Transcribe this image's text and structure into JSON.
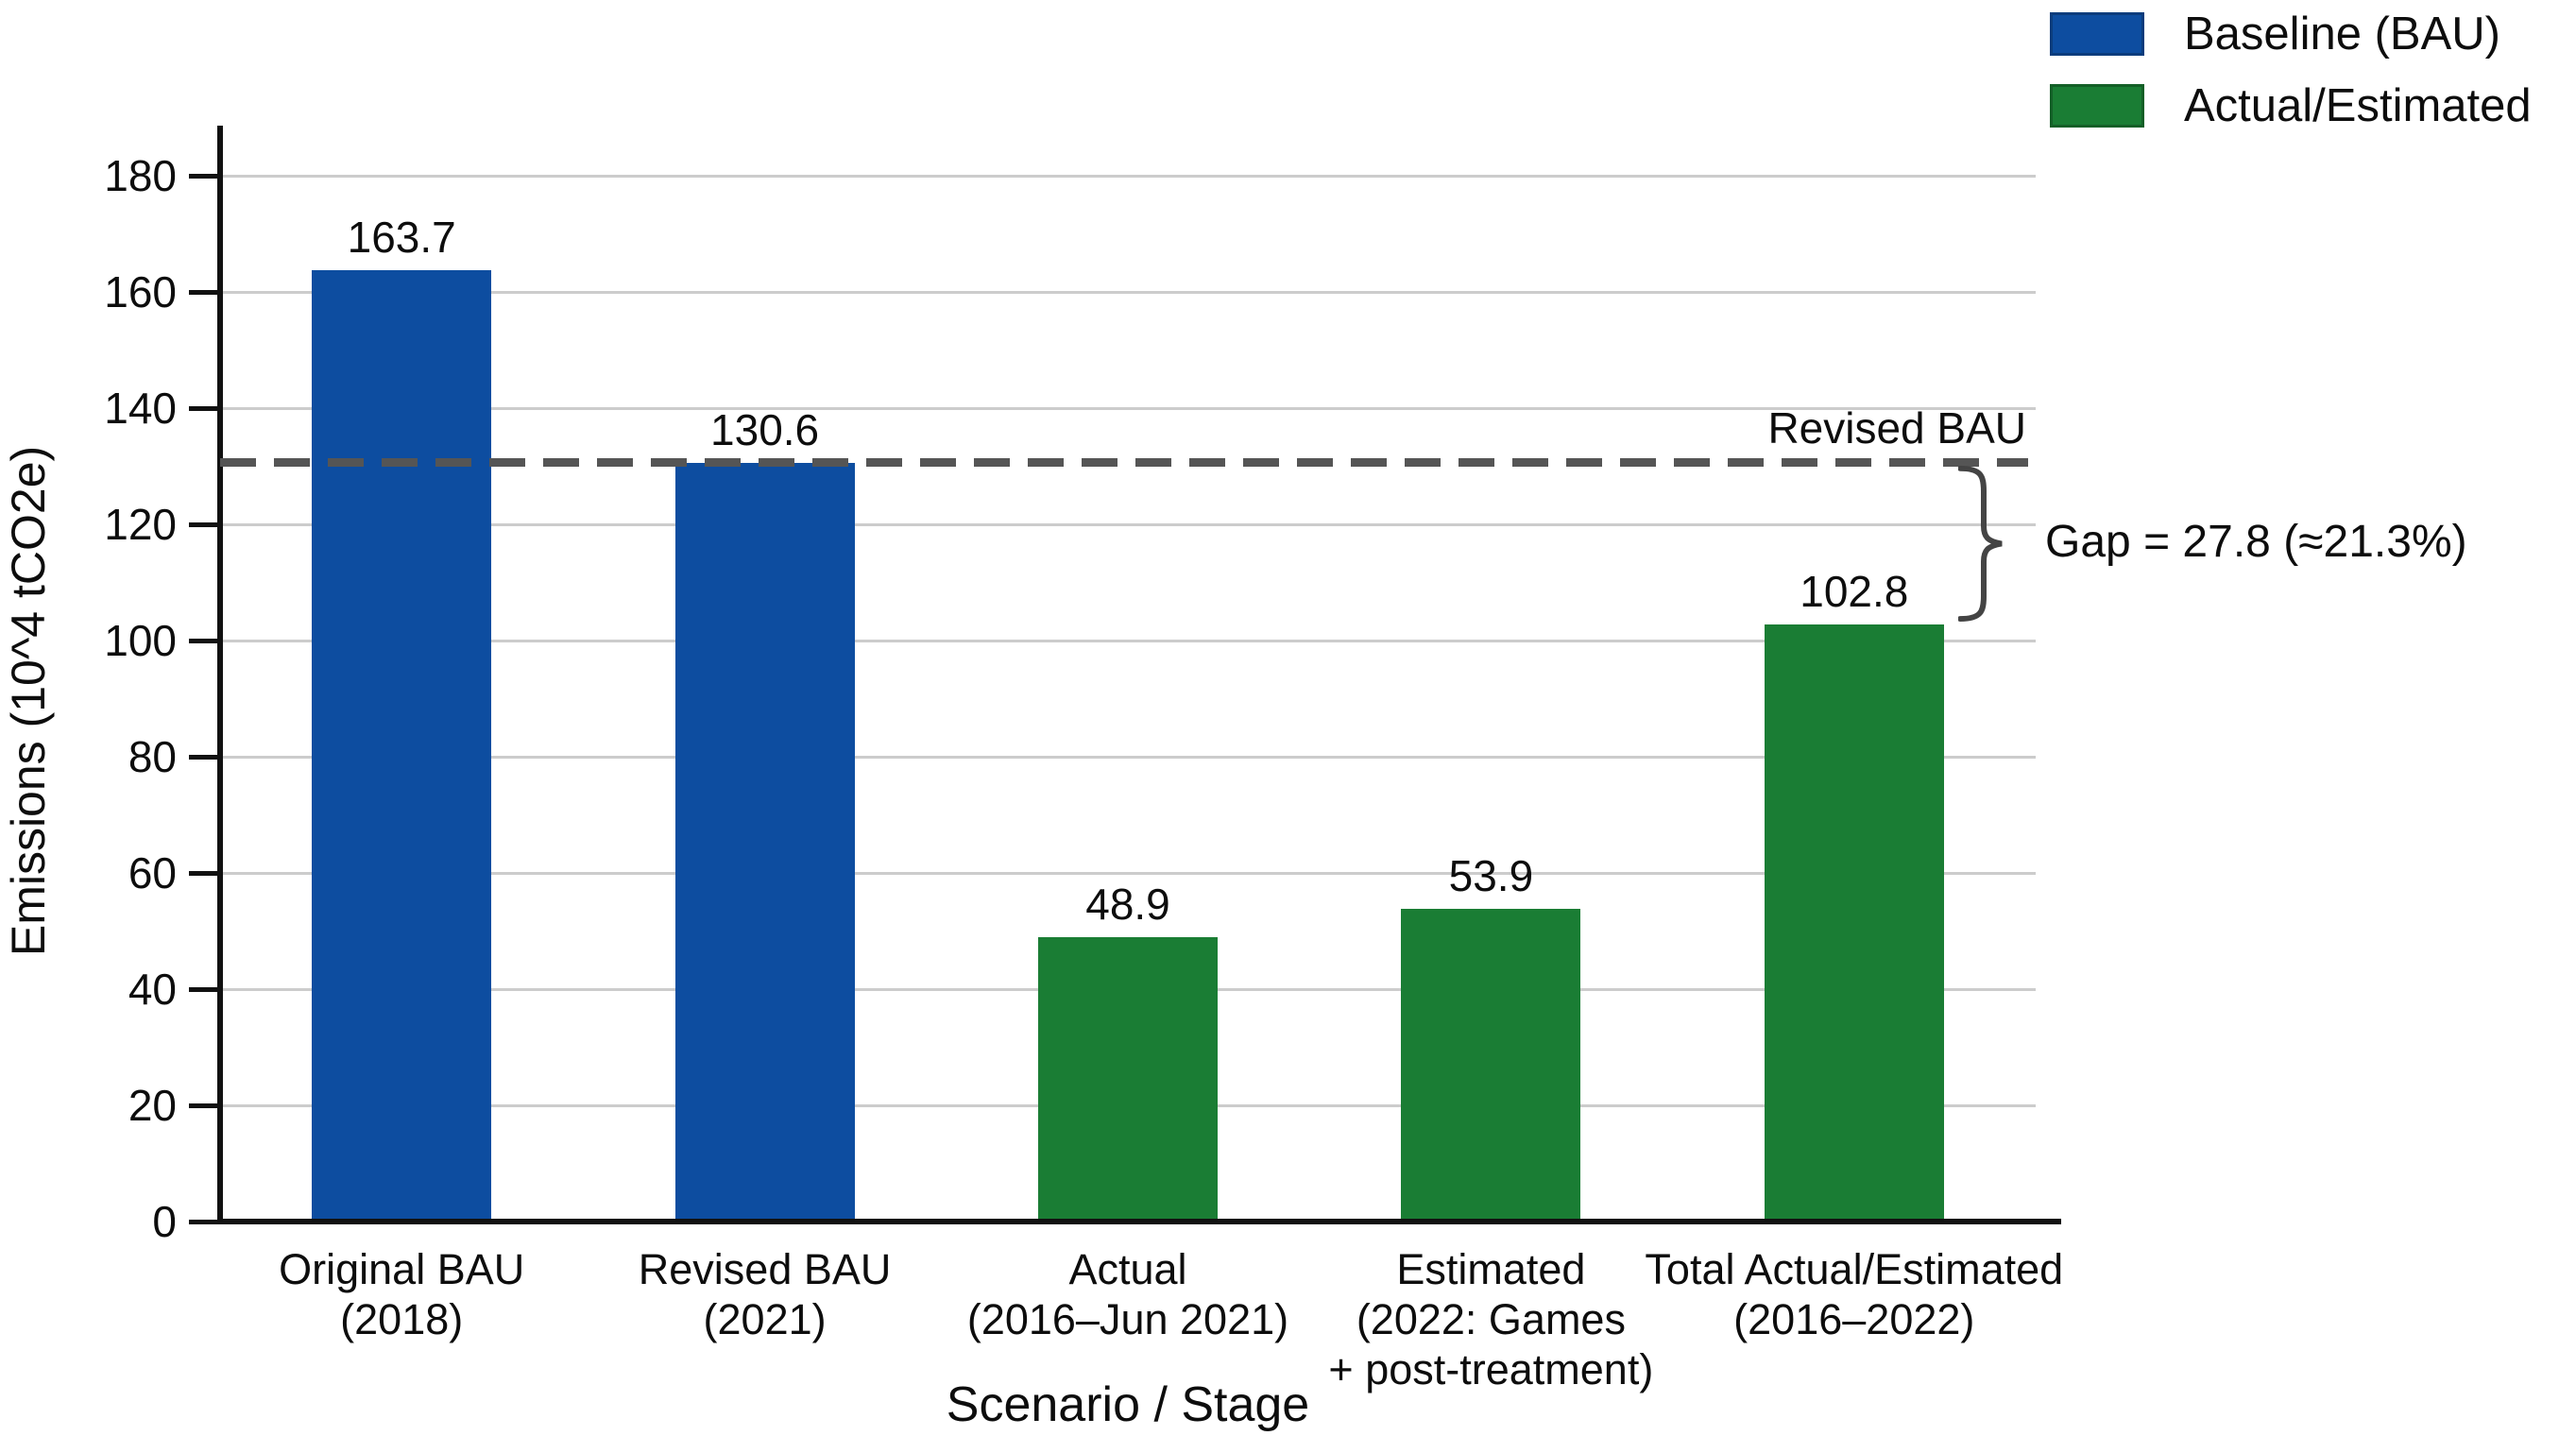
{
  "chart_data": {
    "type": "bar",
    "title": "",
    "xlabel": "Scenario / Stage",
    "ylabel": "Emissions (10^4 tCO2e)",
    "ylim": [
      0,
      180
    ],
    "yticks": [
      0,
      20,
      40,
      60,
      80,
      100,
      120,
      140,
      160,
      180
    ],
    "grid": "horizontal",
    "legend_position": "top-right",
    "categories": [
      [
        "Original BAU",
        "(2018)"
      ],
      [
        "Revised BAU",
        "(2021)"
      ],
      [
        "Actual",
        "(2016–Jun 2021)"
      ],
      [
        "Estimated",
        "(2022: Games",
        "+ post-treatment)"
      ],
      [
        "Total Actual/Estimated",
        "(2016–2022)"
      ]
    ],
    "values": [
      163.7,
      130.6,
      48.9,
      53.9,
      102.8
    ],
    "value_labels": [
      "163.7",
      "130.6",
      "48.9",
      "53.9",
      "102.8"
    ],
    "bar_series": [
      "baseline",
      "baseline",
      "actual",
      "actual",
      "actual"
    ],
    "colors": {
      "baseline": "#0d4da0",
      "actual": "#1a7d34",
      "baseline_border": "#0a3c7c",
      "actual_border": "#135f27",
      "gridline": "#cccccc",
      "axis": "#111111",
      "reference_line": "#555555",
      "text": "#0d0d0d"
    },
    "legend": [
      {
        "label": "Baseline (BAU)",
        "series": "baseline"
      },
      {
        "label": "Actual/Estimated",
        "series": "actual"
      }
    ],
    "reference_line": {
      "value": 130.6,
      "label": "Revised BAU",
      "style": "dashed"
    },
    "annotation": {
      "text": "Gap = 27.8 (≈21.3%)",
      "from_value": 130.6,
      "to_value": 102.8
    }
  }
}
